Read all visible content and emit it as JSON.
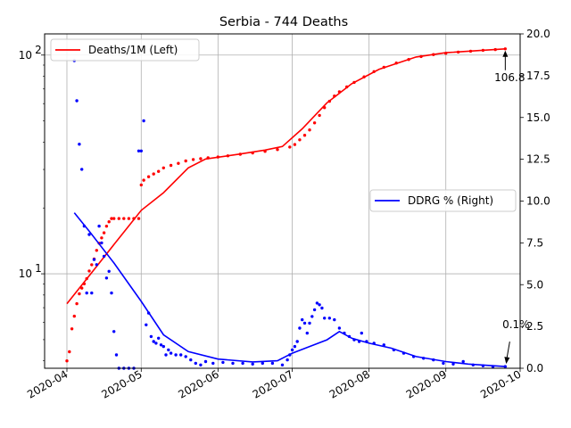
{
  "chart_data": {
    "type": "line",
    "title": "Serbia - 744 Deaths",
    "xlabel": "",
    "ylabel_left": "",
    "ylabel_right": "",
    "x_ticks": [
      "2020-04",
      "2020-05",
      "2020-06",
      "2020-07",
      "2020-08",
      "2020-09",
      "2020-10"
    ],
    "y_left_scale": "log",
    "y_left_ticks": [
      "10^1",
      "10^2"
    ],
    "y_left_range": [
      3.7,
      125
    ],
    "y_right_ticks": [
      "0.0",
      "2.5",
      "5.0",
      "7.5",
      "10.0",
      "12.5",
      "15.0",
      "17.5",
      "20.0"
    ],
    "y_right_range": [
      0,
      20
    ],
    "grid": true,
    "colors": {
      "left": "#ff0000",
      "right": "#0000ff"
    },
    "legends": [
      {
        "placement": "upper-left",
        "label": "Deaths/1M (Left)",
        "color": "#ff0000"
      },
      {
        "placement": "center-right",
        "label": "DDRG % (Right)",
        "color": "#0000ff"
      }
    ],
    "annotations": [
      {
        "text": "106.8",
        "series": "Deaths/1M (Left)",
        "x": "2020-09-25",
        "y": 106.8
      },
      {
        "text": "0.1%",
        "series": "DDRG % (Right)",
        "x": "2020-09-25",
        "y": 0.1
      }
    ],
    "series": [
      {
        "name": "Deaths/1M (Left)",
        "axis": "left",
        "style": "line",
        "points": [
          [
            "2020-04-01",
            7.3
          ],
          [
            "2020-04-10",
            9.8
          ],
          [
            "2020-04-20",
            13.6
          ],
          [
            "2020-05-01",
            19.5
          ],
          [
            "2020-05-10",
            23.5
          ],
          [
            "2020-05-20",
            30.5
          ],
          [
            "2020-05-27",
            33.5
          ],
          [
            "2020-06-10",
            35.3
          ],
          [
            "2020-06-20",
            36.8
          ],
          [
            "2020-06-27",
            38.2
          ],
          [
            "2020-07-05",
            46.0
          ],
          [
            "2020-07-15",
            60.5
          ],
          [
            "2020-07-25",
            74.0
          ],
          [
            "2020-08-05",
            86.0
          ],
          [
            "2020-08-20",
            98.0
          ],
          [
            "2020-09-01",
            102.5
          ],
          [
            "2020-09-15",
            105.0
          ],
          [
            "2020-09-25",
            106.8
          ]
        ]
      },
      {
        "name": "Deaths/1M (Left)",
        "axis": "left",
        "style": "dots",
        "points": [
          [
            "2020-04-01",
            4.0
          ],
          [
            "2020-04-02",
            4.4
          ],
          [
            "2020-04-03",
            5.6
          ],
          [
            "2020-04-04",
            6.4
          ],
          [
            "2020-04-05",
            7.3
          ],
          [
            "2020-04-06",
            8.1
          ],
          [
            "2020-04-07",
            8.6
          ],
          [
            "2020-04-08",
            9.0
          ],
          [
            "2020-04-09",
            9.5
          ],
          [
            "2020-04-10",
            10.3
          ],
          [
            "2020-04-11",
            11.0
          ],
          [
            "2020-04-12",
            11.7
          ],
          [
            "2020-04-13",
            12.8
          ],
          [
            "2020-04-14",
            13.8
          ],
          [
            "2020-04-15",
            14.6
          ],
          [
            "2020-04-16",
            15.4
          ],
          [
            "2020-04-17",
            16.5
          ],
          [
            "2020-04-18",
            17.3
          ],
          [
            "2020-04-19",
            17.9
          ],
          [
            "2020-04-20",
            17.9
          ],
          [
            "2020-04-22",
            17.9
          ],
          [
            "2020-04-24",
            17.9
          ],
          [
            "2020-04-26",
            17.9
          ],
          [
            "2020-04-28",
            17.9
          ],
          [
            "2020-04-30",
            17.9
          ],
          [
            "2020-05-01",
            25.5
          ],
          [
            "2020-05-02",
            26.8
          ],
          [
            "2020-05-04",
            27.8
          ],
          [
            "2020-05-06",
            28.6
          ],
          [
            "2020-05-08",
            29.4
          ],
          [
            "2020-05-10",
            30.5
          ],
          [
            "2020-05-13",
            31.3
          ],
          [
            "2020-05-16",
            32.0
          ],
          [
            "2020-05-19",
            32.8
          ],
          [
            "2020-05-22",
            33.3
          ],
          [
            "2020-05-25",
            33.6
          ],
          [
            "2020-05-28",
            33.9
          ],
          [
            "2020-06-01",
            34.2
          ],
          [
            "2020-06-05",
            34.6
          ],
          [
            "2020-06-10",
            35.2
          ],
          [
            "2020-06-15",
            35.7
          ],
          [
            "2020-06-20",
            36.3
          ],
          [
            "2020-06-25",
            37.0
          ],
          [
            "2020-06-30",
            38.0
          ],
          [
            "2020-07-02",
            39.0
          ],
          [
            "2020-07-04",
            41.0
          ],
          [
            "2020-07-06",
            43.0
          ],
          [
            "2020-07-08",
            45.5
          ],
          [
            "2020-07-10",
            49.0
          ],
          [
            "2020-07-12",
            53.0
          ],
          [
            "2020-07-14",
            57.5
          ],
          [
            "2020-07-16",
            61.5
          ],
          [
            "2020-07-18",
            65.0
          ],
          [
            "2020-07-20",
            68.0
          ],
          [
            "2020-07-23",
            71.5
          ],
          [
            "2020-07-26",
            75.0
          ],
          [
            "2020-07-30",
            79.5
          ],
          [
            "2020-08-03",
            84.0
          ],
          [
            "2020-08-07",
            88.0
          ],
          [
            "2020-08-12",
            92.0
          ],
          [
            "2020-08-17",
            95.5
          ],
          [
            "2020-08-22",
            98.5
          ],
          [
            "2020-08-27",
            100.5
          ],
          [
            "2020-09-01",
            102.0
          ],
          [
            "2020-09-06",
            103.2
          ],
          [
            "2020-09-11",
            104.2
          ],
          [
            "2020-09-16",
            105.2
          ],
          [
            "2020-09-21",
            106.0
          ],
          [
            "2020-09-25",
            106.8
          ]
        ]
      },
      {
        "name": "DDRG % (Right)",
        "axis": "right",
        "style": "line",
        "points": [
          [
            "2020-04-04",
            9.3
          ],
          [
            "2020-04-10",
            8.2
          ],
          [
            "2020-04-20",
            6.3
          ],
          [
            "2020-05-01",
            4.0
          ],
          [
            "2020-05-10",
            2.0
          ],
          [
            "2020-05-20",
            1.0
          ],
          [
            "2020-06-01",
            0.55
          ],
          [
            "2020-06-15",
            0.38
          ],
          [
            "2020-06-25",
            0.45
          ],
          [
            "2020-07-01",
            0.9
          ],
          [
            "2020-07-08",
            1.3
          ],
          [
            "2020-07-15",
            1.7
          ],
          [
            "2020-07-20",
            2.2
          ],
          [
            "2020-07-25",
            1.8
          ],
          [
            "2020-08-01",
            1.5
          ],
          [
            "2020-08-10",
            1.2
          ],
          [
            "2020-08-20",
            0.7
          ],
          [
            "2020-09-01",
            0.4
          ],
          [
            "2020-09-10",
            0.25
          ],
          [
            "2020-09-25",
            0.1
          ]
        ]
      },
      {
        "name": "DDRG % (Right)",
        "axis": "right",
        "style": "dots",
        "points": [
          [
            "2020-04-04",
            18.4
          ],
          [
            "2020-04-05",
            16.0
          ],
          [
            "2020-04-06",
            13.4
          ],
          [
            "2020-04-07",
            11.9
          ],
          [
            "2020-04-08",
            8.5
          ],
          [
            "2020-04-09",
            4.5
          ],
          [
            "2020-04-10",
            8.0
          ],
          [
            "2020-04-11",
            4.5
          ],
          [
            "2020-04-12",
            6.5
          ],
          [
            "2020-04-13",
            6.2
          ],
          [
            "2020-04-14",
            8.5
          ],
          [
            "2020-04-15",
            7.5
          ],
          [
            "2020-04-16",
            6.7
          ],
          [
            "2020-04-17",
            5.4
          ],
          [
            "2020-04-18",
            5.8
          ],
          [
            "2020-04-19",
            4.5
          ],
          [
            "2020-04-20",
            2.2
          ],
          [
            "2020-04-21",
            0.8
          ],
          [
            "2020-04-22",
            0.0
          ],
          [
            "2020-04-24",
            0.0
          ],
          [
            "2020-04-26",
            0.0
          ],
          [
            "2020-04-28",
            0.0
          ],
          [
            "2020-04-30",
            13.0
          ],
          [
            "2020-05-01",
            13.0
          ],
          [
            "2020-05-02",
            14.8
          ],
          [
            "2020-05-03",
            2.6
          ],
          [
            "2020-05-04",
            3.3
          ],
          [
            "2020-05-05",
            1.9
          ],
          [
            "2020-05-06",
            1.6
          ],
          [
            "2020-05-07",
            1.5
          ],
          [
            "2020-05-08",
            1.8
          ],
          [
            "2020-05-09",
            1.4
          ],
          [
            "2020-05-10",
            1.3
          ],
          [
            "2020-05-11",
            0.8
          ],
          [
            "2020-05-12",
            1.1
          ],
          [
            "2020-05-13",
            0.9
          ],
          [
            "2020-05-15",
            0.8
          ],
          [
            "2020-05-17",
            0.8
          ],
          [
            "2020-05-19",
            0.7
          ],
          [
            "2020-05-21",
            0.5
          ],
          [
            "2020-05-23",
            0.3
          ],
          [
            "2020-05-25",
            0.2
          ],
          [
            "2020-05-27",
            0.4
          ],
          [
            "2020-05-30",
            0.3
          ],
          [
            "2020-06-03",
            0.35
          ],
          [
            "2020-06-07",
            0.3
          ],
          [
            "2020-06-11",
            0.3
          ],
          [
            "2020-06-15",
            0.25
          ],
          [
            "2020-06-19",
            0.3
          ],
          [
            "2020-06-23",
            0.3
          ],
          [
            "2020-06-27",
            0.2
          ],
          [
            "2020-06-29",
            0.5
          ],
          [
            "2020-06-30",
            0.8
          ],
          [
            "2020-07-01",
            1.1
          ],
          [
            "2020-07-02",
            1.3
          ],
          [
            "2020-07-03",
            1.6
          ],
          [
            "2020-07-04",
            2.4
          ],
          [
            "2020-07-05",
            2.9
          ],
          [
            "2020-07-06",
            2.7
          ],
          [
            "2020-07-07",
            2.1
          ],
          [
            "2020-07-08",
            2.7
          ],
          [
            "2020-07-09",
            3.1
          ],
          [
            "2020-07-10",
            3.5
          ],
          [
            "2020-07-11",
            3.9
          ],
          [
            "2020-07-12",
            3.8
          ],
          [
            "2020-07-13",
            3.6
          ],
          [
            "2020-07-14",
            3.0
          ],
          [
            "2020-07-16",
            3.0
          ],
          [
            "2020-07-18",
            2.9
          ],
          [
            "2020-07-20",
            2.4
          ],
          [
            "2020-07-22",
            2.1
          ],
          [
            "2020-07-24",
            1.9
          ],
          [
            "2020-07-26",
            1.7
          ],
          [
            "2020-07-28",
            1.6
          ],
          [
            "2020-07-29",
            2.1
          ],
          [
            "2020-07-31",
            1.6
          ],
          [
            "2020-08-03",
            1.5
          ],
          [
            "2020-08-07",
            1.4
          ],
          [
            "2020-08-11",
            1.1
          ],
          [
            "2020-08-15",
            0.9
          ],
          [
            "2020-08-19",
            0.7
          ],
          [
            "2020-08-23",
            0.6
          ],
          [
            "2020-08-27",
            0.5
          ],
          [
            "2020-08-31",
            0.3
          ],
          [
            "2020-09-04",
            0.25
          ],
          [
            "2020-09-08",
            0.4
          ],
          [
            "2020-09-12",
            0.2
          ],
          [
            "2020-09-16",
            0.15
          ],
          [
            "2020-09-20",
            0.1
          ],
          [
            "2020-09-25",
            0.1
          ]
        ]
      }
    ]
  }
}
